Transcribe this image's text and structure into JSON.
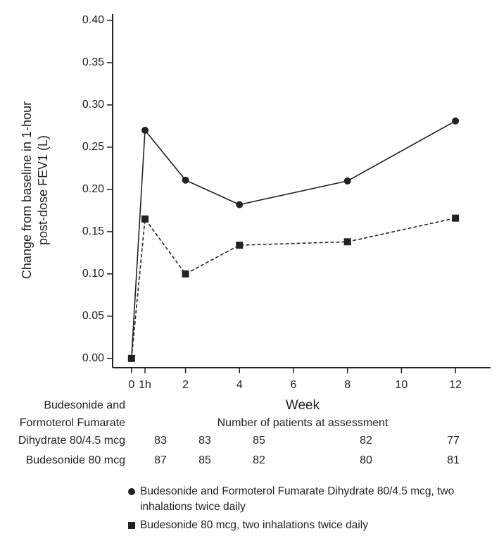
{
  "chart_data": {
    "type": "line",
    "ylabel": [
      "Change from baseline in 1-hour",
      "post-dose FEV1 (L)"
    ],
    "xlabel": "Week",
    "x": [
      0,
      0.5,
      2,
      4,
      8,
      12
    ],
    "xlim": [
      -0.7,
      13.3
    ],
    "xticks": [
      0,
      {
        "value": 0.5,
        "label": "1h"
      },
      2,
      4,
      6,
      8,
      10,
      12
    ],
    "ylim": [
      -0.011,
      0.4
    ],
    "yticks": [
      {
        "value": 0,
        "label": "0.00"
      },
      {
        "value": 0.05,
        "label": "0.05"
      },
      {
        "value": 0.1,
        "label": "0.10"
      },
      {
        "value": 0.15,
        "label": "0.15"
      },
      {
        "value": 0.2,
        "label": "0.20"
      },
      {
        "value": 0.25,
        "label": "0.25"
      },
      {
        "value": 0.3,
        "label": "0.30"
      },
      {
        "value": 0.35,
        "label": "0.35"
      },
      {
        "value": 0.4,
        "label": "0.40"
      }
    ],
    "series": [
      {
        "name": "Budesonide and Formoterol Fumarate Dihydrate 80/4.5 mcg, two inhalations twice daily",
        "color": "#222222",
        "marker": "circle",
        "dash": false,
        "values": [
          0,
          0.27,
          0.211,
          0.182,
          0.21,
          0.281
        ]
      },
      {
        "name": "Budesonide 80 mcg, two inhalations twice daily",
        "color": "#222222",
        "marker": "square",
        "dash": true,
        "values": [
          0,
          0.165,
          0.1,
          0.134,
          0.138,
          0.166
        ]
      }
    ]
  },
  "patients": {
    "title": "Number of patients at assessment",
    "rows": [
      {
        "label": [
          "Budesonide and",
          "Formoterol Fumarate",
          "Dihydrate 80/4.5 mcg"
        ],
        "values": [
          83,
          83,
          85,
          82,
          77
        ]
      },
      {
        "label": [
          "Budesonide 80 mcg"
        ],
        "values": [
          87,
          85,
          82,
          80,
          81
        ]
      }
    ]
  }
}
